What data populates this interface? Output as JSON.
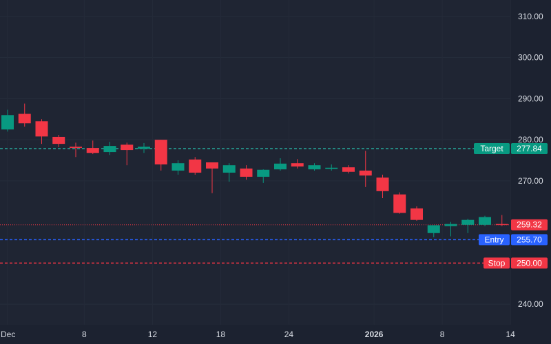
{
  "chart_data": {
    "type": "candlestick",
    "y_range": [
      235,
      314
    ],
    "y_ticks": [
      "310.00",
      "300.00",
      "290.00",
      "280.00",
      "270.00",
      "240.00"
    ],
    "x_ticks": [
      {
        "label": "Dec",
        "index": 0,
        "bold": false
      },
      {
        "label": "8",
        "index": 4.5,
        "bold": false
      },
      {
        "label": "12",
        "index": 8.5,
        "bold": false
      },
      {
        "label": "18",
        "index": 12.5,
        "bold": false
      },
      {
        "label": "24",
        "index": 16.5,
        "bold": false
      },
      {
        "label": "2026",
        "index": 21.5,
        "bold": true
      },
      {
        "label": "8",
        "index": 25.5,
        "bold": false
      },
      {
        "label": "14",
        "index": 29.5,
        "bold": false
      }
    ],
    "candles": [
      {
        "o": 282.5,
        "h": 287.3,
        "l": 282.0,
        "c": 286.0
      },
      {
        "o": 286.3,
        "h": 288.8,
        "l": 283.2,
        "c": 284.0
      },
      {
        "o": 284.5,
        "h": 285.0,
        "l": 279.0,
        "c": 280.8
      },
      {
        "o": 280.7,
        "h": 281.2,
        "l": 278.2,
        "c": 279.0
      },
      {
        "o": 278.3,
        "h": 279.3,
        "l": 275.8,
        "c": 278.0
      },
      {
        "o": 278.0,
        "h": 279.8,
        "l": 276.5,
        "c": 276.8
      },
      {
        "o": 277.0,
        "h": 279.5,
        "l": 276.3,
        "c": 278.5
      },
      {
        "o": 278.8,
        "h": 279.3,
        "l": 273.8,
        "c": 277.5
      },
      {
        "o": 277.8,
        "h": 279.2,
        "l": 276.8,
        "c": 278.3
      },
      {
        "o": 280.0,
        "h": 280.0,
        "l": 272.5,
        "c": 274.0
      },
      {
        "o": 272.5,
        "h": 275.0,
        "l": 271.5,
        "c": 274.3
      },
      {
        "o": 275.2,
        "h": 275.8,
        "l": 271.5,
        "c": 272.0
      },
      {
        "o": 274.5,
        "h": 274.5,
        "l": 267.0,
        "c": 273.0
      },
      {
        "o": 272.0,
        "h": 274.3,
        "l": 269.8,
        "c": 273.8
      },
      {
        "o": 273.0,
        "h": 273.8,
        "l": 270.3,
        "c": 271.0
      },
      {
        "o": 271.0,
        "h": 272.8,
        "l": 269.5,
        "c": 272.7
      },
      {
        "o": 272.8,
        "h": 275.5,
        "l": 272.5,
        "c": 274.2
      },
      {
        "o": 274.3,
        "h": 275.3,
        "l": 273.0,
        "c": 273.5
      },
      {
        "o": 272.8,
        "h": 274.3,
        "l": 272.5,
        "c": 273.8
      },
      {
        "o": 272.9,
        "h": 274.0,
        "l": 272.5,
        "c": 273.2
      },
      {
        "o": 273.3,
        "h": 273.8,
        "l": 271.8,
        "c": 272.2
      },
      {
        "o": 272.5,
        "h": 277.3,
        "l": 268.5,
        "c": 271.3
      },
      {
        "o": 270.8,
        "h": 271.5,
        "l": 265.8,
        "c": 267.5
      },
      {
        "o": 266.7,
        "h": 267.2,
        "l": 262.0,
        "c": 262.2
      },
      {
        "o": 263.3,
        "h": 263.8,
        "l": 260.3,
        "c": 260.5
      },
      {
        "o": 257.3,
        "h": 259.2,
        "l": 256.3,
        "c": 259.2
      },
      {
        "o": 259.0,
        "h": 260.0,
        "l": 256.5,
        "c": 259.5
      },
      {
        "o": 259.3,
        "h": 260.8,
        "l": 257.3,
        "c": 260.5
      },
      {
        "o": 259.3,
        "h": 261.5,
        "l": 259.0,
        "c": 261.2
      },
      {
        "o": 259.5,
        "h": 261.7,
        "l": 259.0,
        "c": 259.3
      }
    ],
    "price_lines": [
      {
        "name": "target",
        "label": "Target",
        "value": "277.84",
        "price": 277.84,
        "color": "#26a69a",
        "tag_color": "#089981",
        "style": "dashed"
      },
      {
        "name": "entry",
        "label": "Entry",
        "value": "255.70",
        "price": 255.7,
        "color": "#2962ff",
        "tag_color": "#2962ff",
        "style": "dashed"
      },
      {
        "name": "stop",
        "label": "Stop",
        "value": "250.00",
        "price": 250.0,
        "color": "#f23645",
        "tag_color": "#f23645",
        "style": "dashed"
      }
    ],
    "last_price": {
      "value": "259.32",
      "price": 259.32,
      "color": "#f23645"
    },
    "colors": {
      "up": "#089981",
      "down": "#f23645",
      "background": "#1f2533",
      "axis_bg": "#1c2230",
      "text": "#d9dde4"
    }
  }
}
